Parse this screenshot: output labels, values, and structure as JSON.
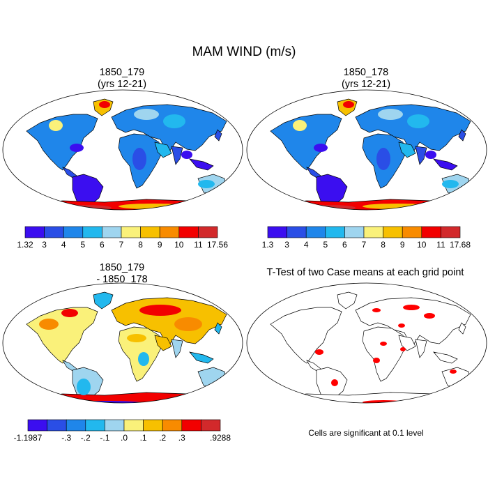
{
  "title": "MAM WIND (m/s)",
  "panels": {
    "p1": {
      "title_line1": "1850_179",
      "title_line2": "(yrs 12-21)"
    },
    "p2": {
      "title_line1": "1850_178",
      "title_line2": "(yrs 12-21)"
    },
    "p3": {
      "title_line1": "1850_179",
      "title_line2": "- 1850_178"
    },
    "p4": {
      "title_line1": "T-Test of two Case means at each grid point"
    }
  },
  "colorbars": {
    "cb1": {
      "colors": [
        "#3b0ef0",
        "#2a4ee6",
        "#1f86ea",
        "#22b8ee",
        "#9fd5ef",
        "#faf17a",
        "#f7c000",
        "#f88b00",
        "#f20000",
        "#d2292b"
      ],
      "labels": [
        "1.32",
        "3",
        "4",
        "5",
        "6",
        "7",
        "8",
        "9",
        "10",
        "11",
        "17.56"
      ]
    },
    "cb2": {
      "colors": [
        "#3b0ef0",
        "#2a4ee6",
        "#1f86ea",
        "#22b8ee",
        "#9fd5ef",
        "#faf17a",
        "#f7c000",
        "#f88b00",
        "#f20000",
        "#d2292b"
      ],
      "labels": [
        "1.3",
        "3",
        "4",
        "5",
        "6",
        "7",
        "8",
        "9",
        "10",
        "11",
        "17.68"
      ]
    },
    "cb3": {
      "colors": [
        "#3b0ef0",
        "#2a4ee6",
        "#1f86ea",
        "#22b8ee",
        "#9fd5ef",
        "#faf17a",
        "#f7c000",
        "#f88b00",
        "#f20000",
        "#d2292b"
      ],
      "labels": [
        "-1.1987",
        "",
        "-.3",
        "-.2",
        "-.1",
        ".0",
        ".1",
        ".2",
        ".3",
        "",
        ".9288"
      ]
    }
  },
  "note": "Cells are significant at 0.1 level",
  "colors": {
    "significant": "#ff0000",
    "coast": "#000000"
  }
}
